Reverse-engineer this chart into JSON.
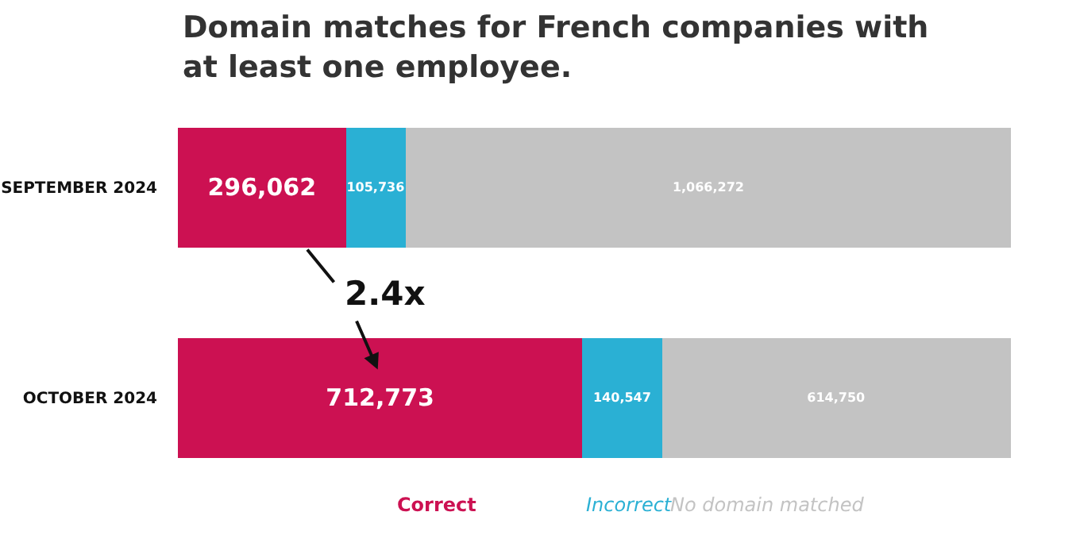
{
  "chart_data": {
    "type": "bar",
    "orientation": "horizontal",
    "stacked": true,
    "title": "Domain matches for French companies with at least one employee.",
    "categories": [
      "SEPTEMBER 2024",
      "OCTOBER 2024"
    ],
    "series": [
      {
        "name": "Correct",
        "color": "#cc1152",
        "values": [
          296062,
          712773
        ],
        "value_labels": [
          "296,062",
          "712,773"
        ]
      },
      {
        "name": "Incorrect",
        "color": "#2ab0d4",
        "values": [
          105736,
          140547
        ],
        "value_labels": [
          "105,736",
          "140,547"
        ]
      },
      {
        "name": "No domain matched",
        "color": "#c3c3c3",
        "values": [
          1066272,
          614750
        ],
        "value_labels": [
          "1,066,272",
          "614,750"
        ]
      }
    ],
    "tick_labels": "y",
    "legend": "bottom",
    "annotations": [
      "2.4x"
    ]
  }
}
